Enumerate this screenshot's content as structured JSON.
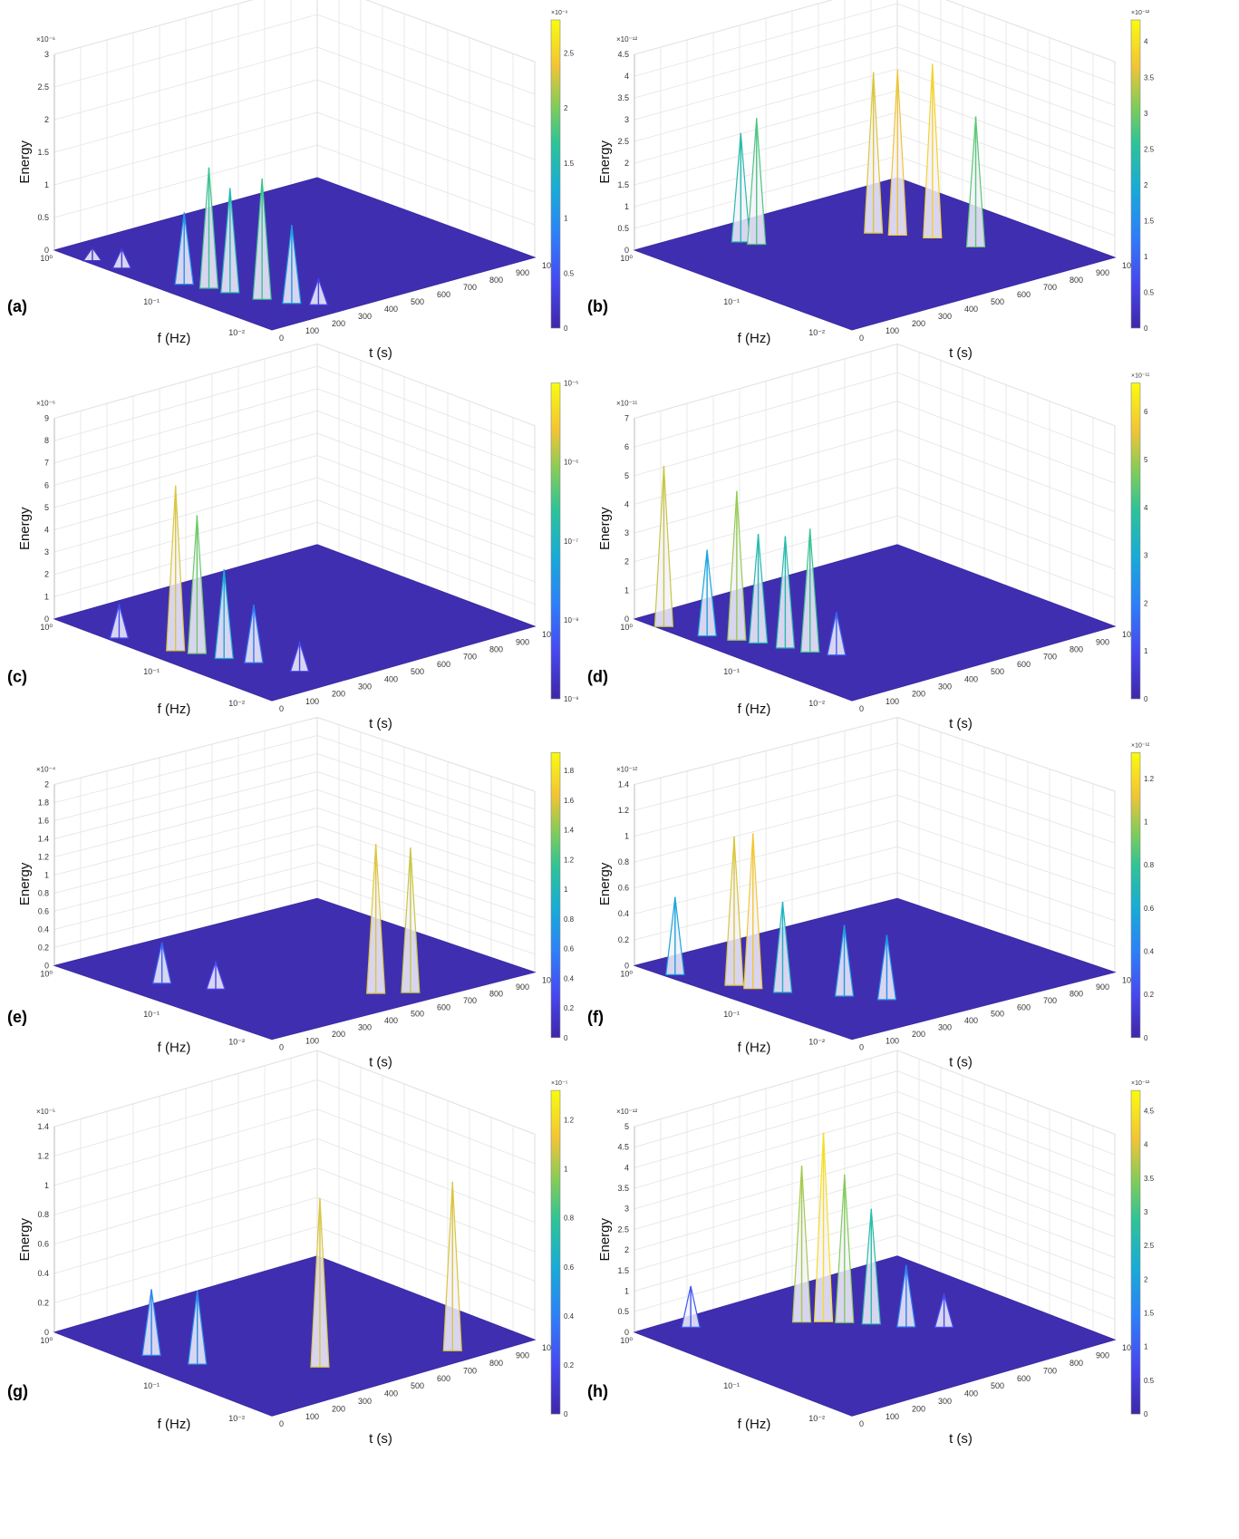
{
  "figure": {
    "panels": [
      {
        "letter": "(a)",
        "exponent": "×10⁻⁶",
        "cbar_exponent": "×10⁻⁶"
      },
      {
        "letter": "(b)",
        "exponent": "×10⁻¹²",
        "cbar_exponent": "×10⁻¹²"
      },
      {
        "letter": "(c)",
        "exponent": "×10⁻⁶",
        "cbar_exponent": ""
      },
      {
        "letter": "(d)",
        "exponent": "×10⁻¹¹",
        "cbar_exponent": "×10⁻¹¹"
      },
      {
        "letter": "(e)",
        "exponent": "×10⁻⁴",
        "cbar_exponent": ""
      },
      {
        "letter": "(f)",
        "exponent": "×10⁻¹²",
        "cbar_exponent": "×10⁻¹²"
      },
      {
        "letter": "(g)",
        "exponent": "×10⁻⁵",
        "cbar_exponent": "×10⁻⁵"
      },
      {
        "letter": "(h)",
        "exponent": "×10⁻¹²",
        "cbar_exponent": "×10⁻¹²"
      }
    ]
  },
  "chart_data": [
    {
      "panel": "(a)",
      "type": "surface3d",
      "zlabel": "Energy",
      "xlabel": "t (s)",
      "ylabel": "f (Hz)",
      "z_ticks": [
        "0",
        "0.5",
        "1",
        "1.5",
        "2",
        "2.5",
        "3"
      ],
      "z_scale": "×10⁻⁶",
      "zlim": [
        0,
        3
      ],
      "t_ticks": [
        "0",
        "100",
        "200",
        "300",
        "400",
        "500",
        "600",
        "700",
        "800",
        "900",
        "1000"
      ],
      "tlim": [
        0,
        1000
      ],
      "f_ticks": [
        "10⁰",
        "10⁻¹",
        "10⁻²"
      ],
      "f_scale": "log",
      "colorbar": {
        "ticks": [
          "0",
          "0.5",
          "1",
          "1.5",
          "2",
          "2.5"
        ],
        "range": [
          0,
          2.9
        ],
        "colormap": "parula"
      },
      "peaks": [
        {
          "t": 20,
          "f": 0.5,
          "z": 0.2
        },
        {
          "t": 40,
          "f": 0.3,
          "z": 0.3
        },
        {
          "t": 80,
          "f": 0.1,
          "z": 1.1
        },
        {
          "t": 110,
          "f": 0.07,
          "z": 1.85
        },
        {
          "t": 130,
          "f": 0.05,
          "z": 1.6
        },
        {
          "t": 160,
          "f": 0.03,
          "z": 1.85
        },
        {
          "t": 200,
          "f": 0.02,
          "z": 1.2
        },
        {
          "t": 250,
          "f": 0.015,
          "z": 0.4
        }
      ]
    },
    {
      "panel": "(b)",
      "type": "surface3d",
      "zlabel": "Energy",
      "xlabel": "t (s)",
      "ylabel": "f (Hz)",
      "z_ticks": [
        "0",
        "0.5",
        "1",
        "1.5",
        "2",
        "2.5",
        "3",
        "3.5",
        "4",
        "4.5"
      ],
      "z_scale": "×10⁻¹²",
      "zlim": [
        0,
        4.5
      ],
      "t_ticks": [
        "0",
        "100",
        "200",
        "300",
        "400",
        "500",
        "600",
        "700",
        "800",
        "900",
        "1000"
      ],
      "tlim": [
        0,
        1000
      ],
      "f_ticks": [
        "10⁰",
        "10⁻¹",
        "10⁻²"
      ],
      "f_scale": "log",
      "colorbar": {
        "ticks": [
          "0",
          "0.5",
          "1",
          "1.5",
          "2",
          "2.5",
          "3",
          "3.5",
          "4"
        ],
        "range": [
          0,
          4.4
        ],
        "colormap": "parula"
      },
      "peaks": [
        {
          "t": 280,
          "f": 0.5,
          "z": 2.5
        },
        {
          "t": 300,
          "f": 0.4,
          "z": 2.9
        },
        {
          "t": 620,
          "f": 0.2,
          "z": 3.7
        },
        {
          "t": 660,
          "f": 0.15,
          "z": 3.8
        },
        {
          "t": 720,
          "f": 0.1,
          "z": 4.0
        },
        {
          "t": 760,
          "f": 0.05,
          "z": 3.0
        }
      ]
    },
    {
      "panel": "(c)",
      "type": "surface3d",
      "zlabel": "Energy",
      "xlabel": "t (s)",
      "ylabel": "f (Hz)",
      "z_ticks": [
        "0",
        "1",
        "2",
        "3",
        "4",
        "5",
        "6",
        "7",
        "8",
        "9"
      ],
      "z_scale": "×10⁻⁶",
      "zlim": [
        0,
        9
      ],
      "t_ticks": [
        "0",
        "100",
        "200",
        "300",
        "400",
        "500",
        "600",
        "700",
        "800",
        "900",
        "1000"
      ],
      "tlim": [
        0,
        1000
      ],
      "f_ticks": [
        "10⁰",
        "10⁻¹",
        "10⁻²"
      ],
      "f_scale": "log",
      "colorbar": {
        "ticks": [
          "10⁻⁹",
          "10⁻⁸",
          "10⁻⁷",
          "10⁻⁶",
          "10⁻⁵"
        ],
        "scale": "log",
        "colormap": "parula"
      },
      "peaks": [
        {
          "t": 30,
          "f": 0.3,
          "z": 1.5
        },
        {
          "t": 80,
          "f": 0.12,
          "z": 7.4
        },
        {
          "t": 110,
          "f": 0.09,
          "z": 6.2
        },
        {
          "t": 140,
          "f": 0.06,
          "z": 4.0
        },
        {
          "t": 180,
          "f": 0.04,
          "z": 2.6
        },
        {
          "t": 230,
          "f": 0.02,
          "z": 1.3
        }
      ]
    },
    {
      "panel": "(d)",
      "type": "surface3d",
      "zlabel": "Energy",
      "xlabel": "t (s)",
      "ylabel": "f (Hz)",
      "z_ticks": [
        "0",
        "1",
        "2",
        "3",
        "4",
        "5",
        "6",
        "7"
      ],
      "z_scale": "×10⁻¹¹",
      "zlim": [
        0,
        7
      ],
      "t_ticks": [
        "0",
        "100",
        "200",
        "300",
        "400",
        "500",
        "600",
        "700",
        "800",
        "900",
        "1000"
      ],
      "tlim": [
        0,
        1000
      ],
      "f_ticks": [
        "10⁰",
        "10⁻¹",
        "10⁻²"
      ],
      "f_scale": "log",
      "colorbar": {
        "ticks": [
          "0",
          "1",
          "2",
          "3",
          "4",
          "5",
          "6"
        ],
        "range": [
          0,
          6.7
        ],
        "colormap": "parula"
      },
      "peaks": [
        {
          "t": 20,
          "f": 0.6,
          "z": 5.6
        },
        {
          "t": 60,
          "f": 0.3,
          "z": 3.0
        },
        {
          "t": 100,
          "f": 0.2,
          "z": 5.2
        },
        {
          "t": 130,
          "f": 0.15,
          "z": 3.8
        },
        {
          "t": 160,
          "f": 0.1,
          "z": 3.9
        },
        {
          "t": 190,
          "f": 0.07,
          "z": 4.3
        },
        {
          "t": 230,
          "f": 0.05,
          "z": 1.5
        }
      ]
    },
    {
      "panel": "(e)",
      "type": "surface3d",
      "zlabel": "Energy",
      "xlabel": "t (s)",
      "ylabel": "f (Hz)",
      "z_ticks": [
        "0",
        "0.2",
        "0.4",
        "0.6",
        "0.8",
        "1",
        "1.2",
        "1.4",
        "1.6",
        "1.8",
        "2"
      ],
      "z_scale": "×10⁻⁴",
      "zlim": [
        0,
        2
      ],
      "t_ticks": [
        "0",
        "100",
        "200",
        "300",
        "400",
        "500",
        "600",
        "700",
        "800",
        "900",
        "1000"
      ],
      "tlim": [
        0,
        1000
      ],
      "f_ticks": [
        "10⁰",
        "10⁻¹",
        "10⁻²"
      ],
      "f_scale": "log",
      "colorbar": {
        "ticks": [
          "0",
          "0.2",
          "0.4",
          "0.6",
          "0.8",
          "1",
          "1.2",
          "1.4",
          "1.6",
          "1.8"
        ],
        "range": [
          0,
          1.8
        ],
        "colormap": "parula"
      },
      "peaks": [
        {
          "t": 120,
          "f": 0.2,
          "z": 0.45
        },
        {
          "t": 200,
          "f": 0.1,
          "z": 0.3
        },
        {
          "t": 520,
          "f": 0.02,
          "z": 1.65
        },
        {
          "t": 600,
          "f": 0.015,
          "z": 1.6
        }
      ]
    },
    {
      "panel": "(f)",
      "type": "surface3d",
      "zlabel": "Energy",
      "xlabel": "t (s)",
      "ylabel": "f (Hz)",
      "z_ticks": [
        "0",
        "0.2",
        "0.4",
        "0.6",
        "0.8",
        "1",
        "1.2",
        "1.4"
      ],
      "z_scale": "×10⁻¹²",
      "zlim": [
        0,
        1.4
      ],
      "t_ticks": [
        "0",
        "100",
        "200",
        "300",
        "400",
        "500",
        "600",
        "700",
        "800",
        "900",
        "1000"
      ],
      "tlim": [
        0,
        1000
      ],
      "f_ticks": [
        "10⁰",
        "10⁻¹",
        "10⁻²"
      ],
      "f_scale": "log",
      "colorbar": {
        "ticks": [
          "0",
          "0.2",
          "0.4",
          "0.6",
          "0.8",
          "1",
          "1.2"
        ],
        "range": [
          0,
          1.3
        ],
        "colormap": "parula"
      },
      "peaks": [
        {
          "t": 30,
          "f": 0.5,
          "z": 0.6
        },
        {
          "t": 90,
          "f": 0.2,
          "z": 1.15
        },
        {
          "t": 110,
          "f": 0.15,
          "z": 1.2
        },
        {
          "t": 150,
          "f": 0.1,
          "z": 0.7
        },
        {
          "t": 260,
          "f": 0.05,
          "z": 0.55
        },
        {
          "t": 330,
          "f": 0.03,
          "z": 0.5
        }
      ]
    },
    {
      "panel": "(g)",
      "type": "surface3d",
      "zlabel": "Energy",
      "xlabel": "t (s)",
      "ylabel": "f (Hz)",
      "z_ticks": [
        "0",
        "0.2",
        "0.4",
        "0.6",
        "0.8",
        "1",
        "1.2",
        "1.4"
      ],
      "z_scale": "×10⁻⁵",
      "zlim": [
        0,
        1.4
      ],
      "t_ticks": [
        "0",
        "100",
        "200",
        "300",
        "400",
        "500",
        "600",
        "700",
        "800",
        "900",
        "1000"
      ],
      "tlim": [
        0,
        1000
      ],
      "f_ticks": [
        "10⁰",
        "10⁻¹",
        "10⁻²"
      ],
      "f_scale": "log",
      "colorbar": {
        "ticks": [
          "0",
          "0.2",
          "0.4",
          "0.6",
          "0.8",
          "1",
          "1.2"
        ],
        "range": [
          0,
          1.25
        ],
        "colormap": "parula"
      },
      "peaks": [
        {
          "t": 80,
          "f": 0.2,
          "z": 0.45
        },
        {
          "t": 130,
          "f": 0.1,
          "z": 0.5
        },
        {
          "t": 380,
          "f": 0.03,
          "z": 1.15
        },
        {
          "t": 760,
          "f": 0.015,
          "z": 1.15
        }
      ]
    },
    {
      "panel": "(h)",
      "type": "surface3d",
      "zlabel": "Energy",
      "xlabel": "t (s)",
      "ylabel": "f (Hz)",
      "z_ticks": [
        "0",
        "0.5",
        "1",
        "1.5",
        "2",
        "2.5",
        "3",
        "3.5",
        "4",
        "4.5",
        "5"
      ],
      "z_scale": "×10⁻¹²",
      "zlim": [
        0,
        5
      ],
      "t_ticks": [
        "0",
        "100",
        "200",
        "300",
        "400",
        "500",
        "600",
        "700",
        "800",
        "900",
        "1000"
      ],
      "tlim": [
        0,
        1000
      ],
      "f_ticks": [
        "10⁰",
        "10⁻¹",
        "10⁻²"
      ],
      "f_scale": "log",
      "colorbar": {
        "ticks": [
          "0",
          "0.5",
          "1",
          "1.5",
          "2",
          "2.5",
          "3",
          "3.5",
          "4",
          "4.5"
        ],
        "range": [
          0,
          4.6
        ],
        "colormap": "parula"
      },
      "peaks": [
        {
          "t": 150,
          "f": 0.7,
          "z": 1.0
        },
        {
          "t": 420,
          "f": 0.3,
          "z": 3.8
        },
        {
          "t": 470,
          "f": 0.25,
          "z": 4.6
        },
        {
          "t": 510,
          "f": 0.2,
          "z": 3.6
        },
        {
          "t": 560,
          "f": 0.15,
          "z": 2.8
        },
        {
          "t": 620,
          "f": 0.1,
          "z": 1.5
        },
        {
          "t": 700,
          "f": 0.07,
          "z": 0.8
        }
      ]
    }
  ]
}
